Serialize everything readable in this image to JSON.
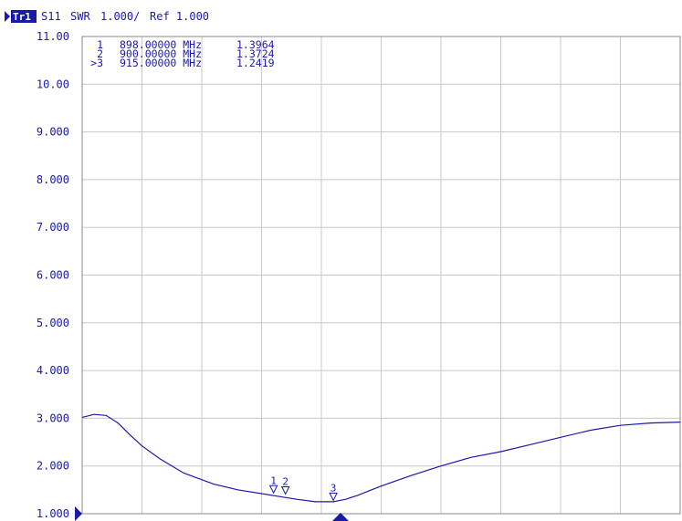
{
  "trace": {
    "tag": "Tr1",
    "param": "S11",
    "format": "SWR",
    "scale": "1.000/",
    "ref": "Ref 1.000",
    "color": "#1a1aa8"
  },
  "chart_data": {
    "type": "line",
    "title": "S11 SWR 1.000/ Ref 1.000",
    "xlabel": "",
    "ylabel": "",
    "ylim": [
      1.0,
      11.0
    ],
    "grid": true,
    "yticks": [
      "11.00",
      "10.00",
      "9.000",
      "8.000",
      "7.000",
      "6.000",
      "5.000",
      "4.000",
      "3.000",
      "2.000",
      "1.000"
    ],
    "x_divisions": 10,
    "series": [
      {
        "x": [
          0,
          0.2,
          0.4,
          0.6,
          0.8,
          1.0,
          1.3,
          1.7,
          2.2,
          2.6,
          3.0,
          3.3,
          3.6,
          3.9,
          4.2,
          4.4,
          4.6,
          5.0,
          5.5,
          6.0,
          6.5,
          7.0,
          7.5,
          8.0,
          8.5,
          9.0,
          9.5,
          10.0
        ],
        "values": [
          3.02,
          3.08,
          3.06,
          2.9,
          2.65,
          2.42,
          2.15,
          1.85,
          1.62,
          1.5,
          1.42,
          1.36,
          1.3,
          1.25,
          1.25,
          1.3,
          1.38,
          1.58,
          1.8,
          2.0,
          2.18,
          2.3,
          2.45,
          2.6,
          2.75,
          2.85,
          2.9,
          2.92
        ]
      }
    ]
  },
  "markers": [
    {
      "num": "1",
      "prefix": "",
      "freq": "898.00000 MHz",
      "value": "1.3964",
      "x": 3.2,
      "y": 1.3964
    },
    {
      "num": "2",
      "prefix": "",
      "freq": "900.00000 MHz",
      "value": "1.3724",
      "x": 3.4,
      "y": 1.3724
    },
    {
      "num": "3",
      "prefix": ">",
      "freq": "915.00000 MHz",
      "value": "1.2419",
      "x": 4.2,
      "y": 1.2419
    }
  ]
}
